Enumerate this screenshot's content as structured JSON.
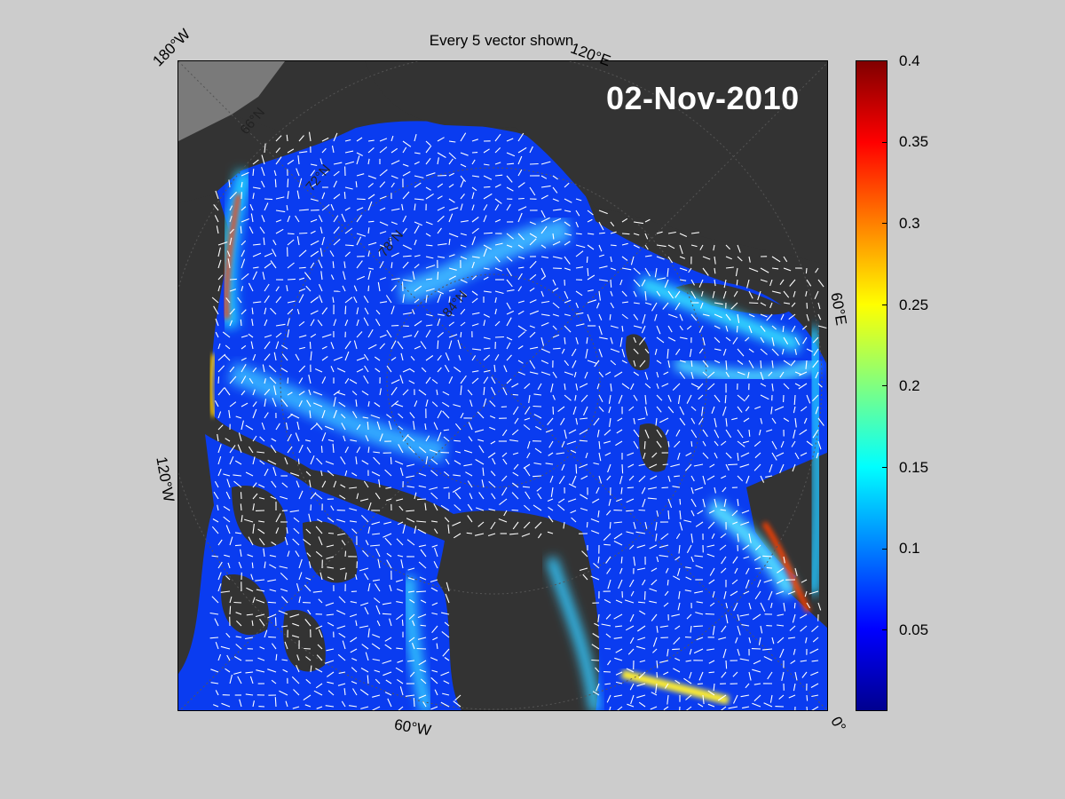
{
  "title": "Every 5 vector shown",
  "date": "02-Nov-2010",
  "longitude_labels": {
    "top_left": "180°W",
    "top_right": "120°E",
    "right": "60°E",
    "bottom_right": "0°",
    "bottom": "60°W",
    "left": "120°W"
  },
  "latitude_labels": [
    "66°N",
    "72°N",
    "78°N",
    "84°N"
  ],
  "colorbar": {
    "ticks": [
      "0.4",
      "0.35",
      "0.3",
      "0.25",
      "0.2",
      "0.15",
      "0.1",
      "0.05"
    ],
    "range": [
      0,
      0.4
    ],
    "colormap": "jet"
  },
  "colors": {
    "background": "#cccccc",
    "land": "#333333",
    "outside_land": "#888888",
    "ocean_low": "#0a3cff",
    "vector": "#ffffff",
    "date_text": "#ffffff"
  }
}
